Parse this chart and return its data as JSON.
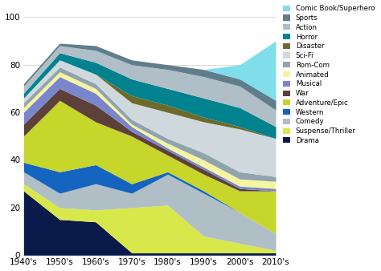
{
  "decades": [
    "1940's",
    "1950's",
    "1960's",
    "1970's",
    "1980's",
    "1990's",
    "2000's",
    "2010's"
  ],
  "genres": [
    "Drama",
    "Suspense/Thriller",
    "Comedy",
    "Western",
    "Adventure/Epic",
    "War",
    "Musical",
    "Animated",
    "Rom-Com",
    "Sci-Fi",
    "Disaster",
    "Horror",
    "Action",
    "Sports",
    "Comic Book/Superhero"
  ],
  "colors": [
    "#0a1a4a",
    "#d8e84a",
    "#b0bec5",
    "#1565c0",
    "#c6d62a",
    "#5d4037",
    "#7986cb",
    "#f5f5a0",
    "#90a4ae",
    "#cfd8dc",
    "#6d6a2a",
    "#00838f",
    "#b0bec8",
    "#607d8b",
    "#80deea"
  ],
  "data": {
    "Drama": [
      27,
      15,
      14,
      1,
      1,
      1,
      1,
      1
    ],
    "Suspense/Thriller": [
      3,
      5,
      5,
      19,
      20,
      7,
      4,
      1
    ],
    "Comedy": [
      5,
      6,
      11,
      6,
      13,
      18,
      13,
      7
    ],
    "Western": [
      4,
      9,
      8,
      4,
      1,
      1,
      0,
      0
    ],
    "Adventure/Epic": [
      11,
      30,
      18,
      20,
      7,
      7,
      9,
      18
    ],
    "War": [
      5,
      5,
      7,
      2,
      2,
      2,
      1,
      0
    ],
    "Musical": [
      5,
      5,
      5,
      2,
      1,
      1,
      1,
      1
    ],
    "Animated": [
      2,
      2,
      2,
      1,
      2,
      3,
      3,
      3
    ],
    "Rom-Com": [
      2,
      2,
      2,
      2,
      2,
      3,
      3,
      2
    ],
    "Sci-Fi": [
      2,
      3,
      4,
      7,
      11,
      13,
      18,
      16
    ],
    "Disaster": [
      0,
      0,
      0,
      3,
      3,
      2,
      1,
      0
    ],
    "Horror": [
      2,
      3,
      5,
      7,
      7,
      8,
      8,
      5
    ],
    "Action": [
      3,
      3,
      5,
      6,
      8,
      9,
      9,
      7
    ],
    "Sports": [
      1,
      1,
      2,
      2,
      2,
      3,
      3,
      4
    ],
    "Comic Book/Superhero": [
      0,
      0,
      0,
      0,
      0,
      0,
      6,
      25
    ]
  },
  "ylim": [
    0,
    105
  ],
  "yticks": [
    0,
    20,
    40,
    60,
    80,
    100
  ]
}
